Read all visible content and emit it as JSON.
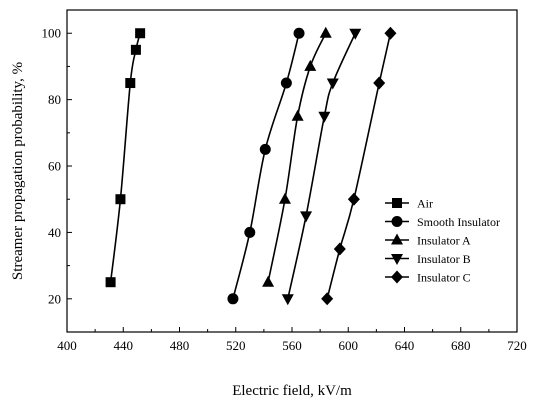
{
  "chart_data": {
    "type": "line",
    "xlabel": "Electric field, kV/m",
    "ylabel": "Streamer propagation probability, %",
    "xlim": [
      400,
      720
    ],
    "ylim": [
      10,
      107
    ],
    "x_ticks": [
      400,
      440,
      480,
      520,
      560,
      600,
      640,
      680,
      720
    ],
    "y_ticks": [
      20,
      40,
      60,
      80,
      100
    ],
    "grid": false,
    "legend_position": "right",
    "series": [
      {
        "name": "Air",
        "marker": "square",
        "points": [
          [
            431,
            25
          ],
          [
            438,
            50
          ],
          [
            445,
            85
          ],
          [
            449,
            95
          ],
          [
            452,
            100
          ]
        ]
      },
      {
        "name": "Smooth Insulator",
        "marker": "circle",
        "points": [
          [
            518,
            20
          ],
          [
            530,
            40
          ],
          [
            541,
            65
          ],
          [
            556,
            85
          ],
          [
            565,
            100
          ]
        ]
      },
      {
        "name": "Insulator A",
        "marker": "triangle-up",
        "points": [
          [
            543,
            25
          ],
          [
            555,
            50
          ],
          [
            564,
            75
          ],
          [
            573,
            90
          ],
          [
            584,
            100
          ]
        ]
      },
      {
        "name": "Insulator B",
        "marker": "triangle-down",
        "points": [
          [
            557,
            20
          ],
          [
            570,
            45
          ],
          [
            583,
            75
          ],
          [
            589,
            85
          ],
          [
            605,
            100
          ]
        ]
      },
      {
        "name": "Insulator C",
        "marker": "diamond",
        "points": [
          [
            585,
            20
          ],
          [
            594,
            35
          ],
          [
            604,
            50
          ],
          [
            622,
            85
          ],
          [
            630,
            100
          ]
        ]
      }
    ]
  }
}
